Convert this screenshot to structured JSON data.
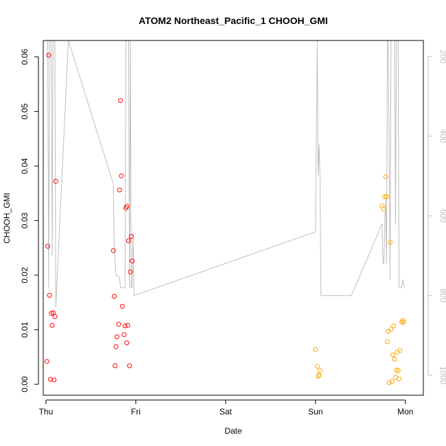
{
  "chart_data": {
    "type": "scatter",
    "title": "ATOM2 Northeast_Pacific_1 CHOOH_GMI",
    "xlabel": "Date",
    "ylabel": "CHOOH_GMI",
    "x_ticks": [
      "Thu",
      "Fri",
      "Sat",
      "Sun",
      "Mon"
    ],
    "xlim": [
      -0.03,
      4.2
    ],
    "ylim": [
      -0.002,
      0.063
    ],
    "y_ticks": [
      0.0,
      0.01,
      0.02,
      0.03,
      0.04,
      0.05,
      0.06
    ],
    "y_tick_labels": [
      "0.00",
      "0.01",
      "0.02",
      "0.03",
      "0.04",
      "0.05",
      "0.06"
    ],
    "y2_ticks": [
      200,
      400,
      600,
      800,
      1000
    ],
    "y2_tick_labels": [
      "200",
      "400",
      "600",
      "800",
      "1000"
    ],
    "y2_lim_top_to_bottom": [
      160,
      1050
    ],
    "colors": {
      "red": "#ff0000",
      "orange": "#ffa500",
      "gray": "#bebebe",
      "axis": "#000000"
    },
    "series": [
      {
        "color": "red",
        "points": [
          [
            0.01,
            0.0042
          ],
          [
            0.02,
            0.0253
          ],
          [
            0.03,
            0.0603
          ],
          [
            0.04,
            0.0163
          ],
          [
            0.05,
            0.0009
          ],
          [
            0.06,
            0.013
          ],
          [
            0.07,
            0.0108
          ],
          [
            0.08,
            0.0131
          ],
          [
            0.09,
            0.0008
          ],
          [
            0.1,
            0.0124
          ],
          [
            0.11,
            0.0372
          ],
          [
            0.75,
            0.0245
          ],
          [
            0.76,
            0.0161
          ],
          [
            0.77,
            0.0034
          ],
          [
            0.78,
            0.0069
          ],
          [
            0.79,
            0.0087
          ],
          [
            0.81,
            0.011
          ],
          [
            0.82,
            0.0356
          ],
          [
            0.83,
            0.052
          ],
          [
            0.84,
            0.0382
          ],
          [
            0.85,
            0.0143
          ],
          [
            0.87,
            0.0091
          ],
          [
            0.88,
            0.0107
          ],
          [
            0.89,
            0.0323
          ],
          [
            0.9,
            0.0076
          ],
          [
            0.9,
            0.0326
          ],
          [
            0.91,
            0.0108
          ],
          [
            0.92,
            0.0263
          ],
          [
            0.93,
            0.0034
          ],
          [
            0.94,
            0.0206
          ],
          [
            0.95,
            0.0271
          ],
          [
            0.96,
            0.0226
          ]
        ]
      },
      {
        "color": "orange",
        "points": [
          [
            3.0,
            0.0064
          ],
          [
            3.02,
            0.0033
          ],
          [
            3.03,
            0.0015
          ],
          [
            3.04,
            0.0017
          ],
          [
            3.05,
            0.0025
          ],
          [
            3.74,
            0.0327
          ],
          [
            3.76,
            0.0321
          ],
          [
            3.77,
            0.0344
          ],
          [
            3.78,
            0.038
          ],
          [
            3.79,
            0.0344
          ],
          [
            3.8,
            0.0078
          ],
          [
            3.81,
            0.0097
          ],
          [
            3.82,
            0.0003
          ],
          [
            3.83,
            0.026
          ],
          [
            3.84,
            0.0101
          ],
          [
            3.85,
            0.0005
          ],
          [
            3.86,
            0.0054
          ],
          [
            3.87,
            0.0107
          ],
          [
            3.88,
            0.0046
          ],
          [
            3.89,
            0.0013
          ],
          [
            3.9,
            0.0026
          ],
          [
            3.91,
            0.0059
          ],
          [
            3.92,
            0.0025
          ],
          [
            3.93,
            0.001
          ],
          [
            3.94,
            0.0062
          ],
          [
            3.96,
            0.0114
          ],
          [
            3.97,
            0.0117
          ],
          [
            3.98,
            0.0114
          ]
        ]
      }
    ],
    "gray_line": [
      [
        0.0,
        160
      ],
      [
        0.02,
        160
      ],
      [
        0.03,
        780
      ],
      [
        0.04,
        160
      ],
      [
        0.06,
        160
      ],
      [
        0.07,
        700
      ],
      [
        0.08,
        160
      ],
      [
        0.1,
        160
      ],
      [
        0.11,
        830
      ],
      [
        0.25,
        160
      ],
      [
        0.75,
        520
      ],
      [
        0.76,
        690
      ],
      [
        0.78,
        750
      ],
      [
        0.8,
        750
      ],
      [
        0.82,
        755
      ],
      [
        0.83,
        780
      ],
      [
        0.84,
        780
      ],
      [
        0.87,
        780
      ],
      [
        0.88,
        780
      ],
      [
        0.89,
        160
      ],
      [
        0.92,
        160
      ],
      [
        0.93,
        780
      ],
      [
        0.94,
        160
      ],
      [
        0.95,
        780
      ],
      [
        0.96,
        780
      ],
      [
        0.97,
        640
      ],
      [
        0.98,
        800
      ],
      [
        3.0,
        640
      ],
      [
        3.02,
        160
      ],
      [
        3.03,
        500
      ],
      [
        3.04,
        420
      ],
      [
        3.05,
        500
      ],
      [
        3.06,
        800
      ],
      [
        3.4,
        800
      ],
      [
        3.74,
        620
      ],
      [
        3.75,
        720
      ],
      [
        3.76,
        720
      ],
      [
        3.77,
        620
      ],
      [
        3.78,
        560
      ],
      [
        3.79,
        720
      ],
      [
        3.8,
        160
      ],
      [
        3.81,
        160
      ],
      [
        3.83,
        760
      ],
      [
        3.84,
        160
      ],
      [
        3.88,
        160
      ],
      [
        3.89,
        620
      ],
      [
        3.9,
        160
      ],
      [
        3.92,
        160
      ],
      [
        3.93,
        780
      ],
      [
        3.95,
        780
      ],
      [
        3.96,
        780
      ],
      [
        3.97,
        760
      ],
      [
        3.98,
        770
      ],
      [
        3.99,
        780
      ]
    ]
  }
}
